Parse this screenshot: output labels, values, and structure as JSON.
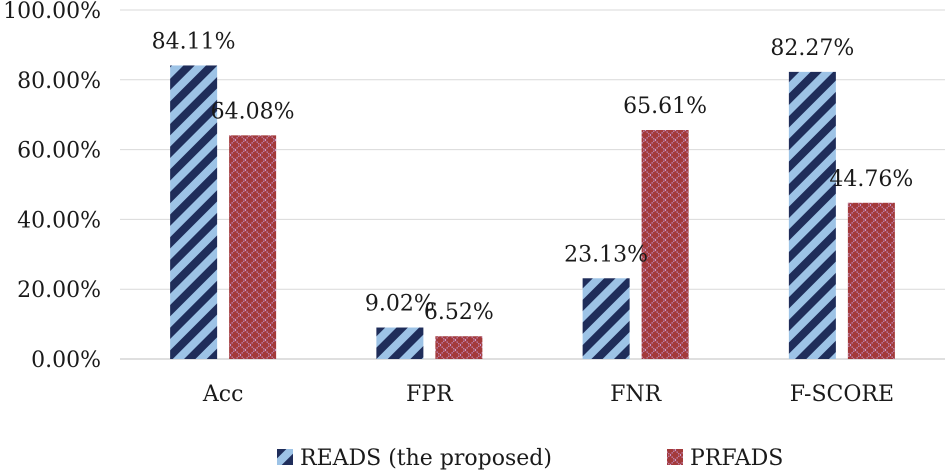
{
  "chart_data": {
    "type": "bar",
    "title": "",
    "xlabel": "",
    "ylabel": "",
    "categories": [
      "Acc",
      "FPR",
      "FNR",
      "F-SCORE"
    ],
    "ylim": [
      0,
      100
    ],
    "yticks": [
      0,
      20,
      40,
      60,
      80,
      100
    ],
    "ytick_labels": [
      "0.00%",
      "20.00%",
      "40.00%",
      "60.00%",
      "80.00%",
      "100.00%"
    ],
    "grid": true,
    "legend_position": "bottom",
    "series": [
      {
        "name": "READS (the proposed)",
        "values": [
          84.11,
          9.02,
          23.13,
          82.27
        ],
        "labels": [
          "84.11%",
          "9.02%",
          "23.13%",
          "82.27%"
        ],
        "colors": {
          "light": "#9DC3E6",
          "dark": "#1F2D5A"
        },
        "pattern": "diagonal-stripes"
      },
      {
        "name": "PRFADS",
        "values": [
          64.08,
          6.52,
          65.61,
          44.76
        ],
        "labels": [
          "64.08%",
          "6.52%",
          "65.61%",
          "44.76%"
        ],
        "colors": {
          "base": "#A33A3A",
          "dots": "#C9A0DC"
        },
        "pattern": "diamond-lattice"
      }
    ]
  }
}
